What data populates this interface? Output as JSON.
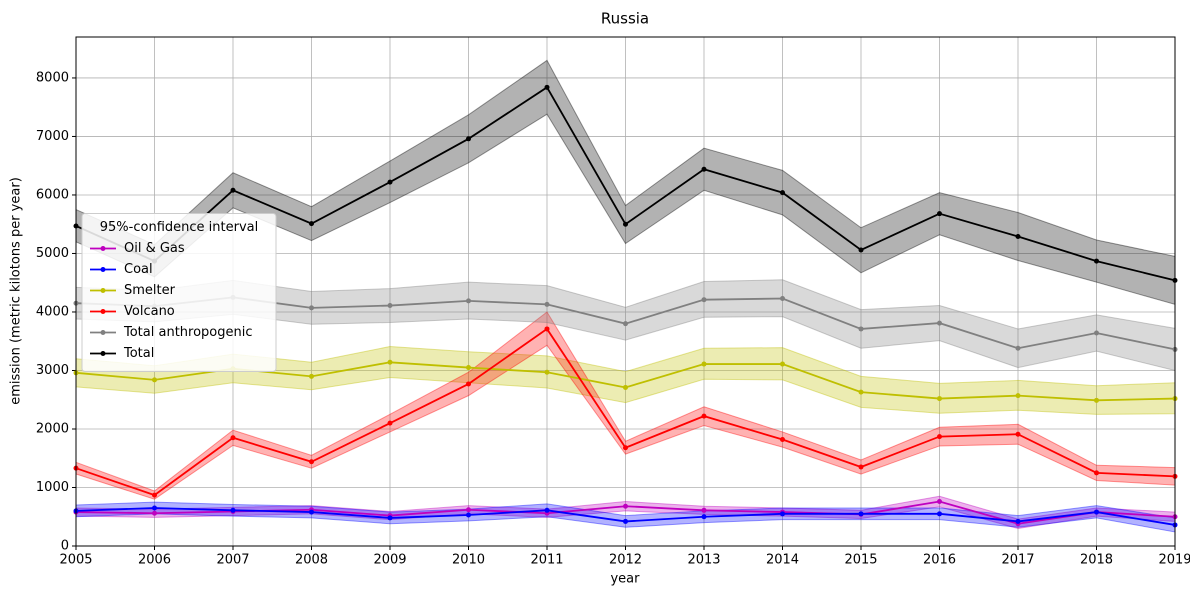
{
  "chart_data": {
    "type": "line",
    "title": "Russia",
    "x_label": "year",
    "y_label": "emission (metric kilotons per year)",
    "x": [
      2005,
      2006,
      2007,
      2008,
      2009,
      2010,
      2011,
      2012,
      2013,
      2014,
      2015,
      2016,
      2017,
      2018,
      2019
    ],
    "xlim": [
      2005,
      2019
    ],
    "xticks": [
      2005,
      2006,
      2007,
      2008,
      2009,
      2010,
      2011,
      2012,
      2013,
      2014,
      2015,
      2016,
      2017,
      2018,
      2019
    ],
    "ylim": [
      0,
      8700
    ],
    "yticks": [
      0,
      1000,
      2000,
      3000,
      4000,
      5000,
      6000,
      7000,
      8000
    ],
    "grid": true,
    "legend_title": "95%-confidence interval",
    "legend_position": "center left",
    "series": [
      {
        "name": "Oil & Gas",
        "color": "#bf00bf",
        "values": [
          580,
          560,
          590,
          620,
          520,
          620,
          560,
          680,
          610,
          580,
          540,
          760,
          380,
          580,
          500
        ],
        "lower": [
          510,
          490,
          520,
          550,
          450,
          550,
          490,
          600,
          540,
          510,
          470,
          670,
          300,
          510,
          420
        ],
        "upper": [
          650,
          630,
          660,
          690,
          590,
          690,
          630,
          760,
          680,
          650,
          610,
          850,
          460,
          650,
          580
        ]
      },
      {
        "name": "Coal",
        "color": "#0000ff",
        "values": [
          600,
          650,
          610,
          580,
          480,
          530,
          610,
          420,
          500,
          550,
          550,
          550,
          420,
          580,
          360
        ],
        "lower": [
          500,
          550,
          510,
          480,
          380,
          430,
          500,
          320,
          400,
          450,
          450,
          450,
          320,
          480,
          240
        ],
        "upper": [
          700,
          750,
          710,
          680,
          580,
          630,
          720,
          520,
          600,
          650,
          650,
          650,
          520,
          690,
          480
        ]
      },
      {
        "name": "Smelter",
        "color": "#bfbf00",
        "values": [
          2960,
          2840,
          3030,
          2900,
          3140,
          3050,
          2970,
          2710,
          3110,
          3110,
          2630,
          2520,
          2570,
          2490,
          2520
        ],
        "lower": [
          2720,
          2610,
          2790,
          2670,
          2880,
          2790,
          2700,
          2450,
          2850,
          2840,
          2370,
          2270,
          2320,
          2250,
          2260
        ],
        "upper": [
          3200,
          3080,
          3280,
          3140,
          3410,
          3320,
          3250,
          2980,
          3380,
          3390,
          2900,
          2780,
          2830,
          2740,
          2790
        ]
      },
      {
        "name": "Volcano",
        "color": "#ff0000",
        "values": [
          1330,
          870,
          1850,
          1440,
          2100,
          2770,
          3710,
          1680,
          2220,
          1820,
          1350,
          1870,
          1910,
          1250,
          1190
        ],
        "lower": [
          1230,
          800,
          1720,
          1330,
          1950,
          2570,
          3430,
          1570,
          2060,
          1690,
          1230,
          1710,
          1740,
          1120,
          1040
        ],
        "upper": [
          1430,
          940,
          1980,
          1550,
          2250,
          2970,
          4000,
          1790,
          2380,
          1950,
          1470,
          2030,
          2080,
          1380,
          1340
        ]
      },
      {
        "name": "Total anthropogenic",
        "color": "#808080",
        "values": [
          4150,
          4100,
          4250,
          4070,
          4110,
          4190,
          4130,
          3800,
          4210,
          4230,
          3710,
          3810,
          3380,
          3640,
          3360
        ],
        "lower": [
          3880,
          3830,
          3960,
          3790,
          3820,
          3880,
          3820,
          3520,
          3910,
          3920,
          3380,
          3510,
          3050,
          3330,
          3000
        ],
        "upper": [
          4420,
          4370,
          4540,
          4350,
          4400,
          4510,
          4450,
          4080,
          4520,
          4550,
          4040,
          4110,
          3710,
          3950,
          3720
        ]
      },
      {
        "name": "Total",
        "color": "#000000",
        "values": [
          5470,
          4870,
          6080,
          5510,
          6220,
          6960,
          7840,
          5500,
          6440,
          6040,
          5060,
          5680,
          5290,
          4870,
          4540
        ],
        "lower": [
          5200,
          4600,
          5780,
          5220,
          5870,
          6550,
          7380,
          5170,
          6080,
          5660,
          4670,
          5320,
          4880,
          4510,
          4130
        ],
        "upper": [
          5750,
          5150,
          6380,
          5800,
          6580,
          7370,
          8300,
          5820,
          6800,
          6420,
          5440,
          6040,
          5700,
          5230,
          4950
        ]
      }
    ]
  }
}
